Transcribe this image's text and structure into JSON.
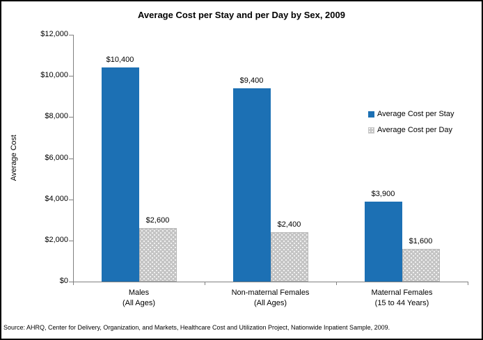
{
  "title": "Average Cost per Stay and per Day by Sex, 2009",
  "y_axis": {
    "title": "Average Cost",
    "tick_labels": [
      "$12,000",
      "$10,000",
      "$8,000",
      "$6,000",
      "$4,000",
      "$2,000",
      "$0"
    ]
  },
  "legend": {
    "items": [
      {
        "label": "Average Cost per Stay",
        "color": "#1C70B4",
        "pattern": "solid"
      },
      {
        "label": "Average Cost per Day",
        "color": "#C5C5C5",
        "pattern": "dotted"
      }
    ]
  },
  "source_note": "Source: AHRQ, Center for Delivery, Organization, and Markets, Healthcare Cost and Utilization Project, Nationwide Inpatient Sample, 2009.",
  "colors": {
    "bar_stay": "#1C70B4",
    "bar_day": "#C5C5C5",
    "axis": "#808080",
    "frame_border": "#000000",
    "background": "#ffffff"
  },
  "chart_data": {
    "type": "bar",
    "title": "Average Cost per Stay and per Day by Sex, 2009",
    "xlabel": "",
    "ylabel": "Average Cost",
    "ylim": [
      0,
      12000
    ],
    "y_tick_step": 2000,
    "grid": false,
    "legend_position": "right",
    "categories": [
      "Males (All Ages)",
      "Non-maternal Females (All Ages)",
      "Maternal Females (15 to 44 Years)"
    ],
    "category_label_lines": [
      [
        "Males",
        "(All Ages)"
      ],
      [
        "Non-maternal Females",
        "(All Ages)"
      ],
      [
        "Maternal Females",
        "(15 to 44 Years)"
      ]
    ],
    "series": [
      {
        "name": "Average Cost per Stay",
        "color": "#1C70B4",
        "values": [
          10400,
          9400,
          3900
        ],
        "value_labels": [
          "$10,400",
          "$9,400",
          "$3,900"
        ]
      },
      {
        "name": "Average Cost per Day",
        "color": "#C5C5C5",
        "values": [
          2600,
          2400,
          1600
        ],
        "value_labels": [
          "$2,600",
          "$2,400",
          "$1,600"
        ]
      }
    ]
  }
}
